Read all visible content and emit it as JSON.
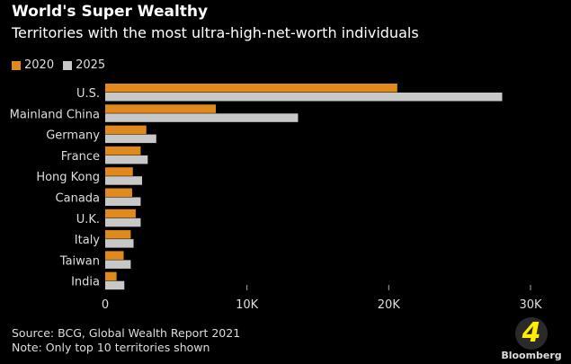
{
  "title": "World's Super Wealthy",
  "subtitle": "Territories with the most ultra-high-net-worth individuals",
  "source": "Source: BCG, Global Wealth Report 2021",
  "note": "Note: Only top 10 territories shown",
  "watermark": "Bloomberg",
  "chart_data": {
    "type": "bar",
    "orientation": "horizontal",
    "title": "World's Super Wealthy",
    "subtitle": "Territories with the most ultra-high-net-worth individuals",
    "categories": [
      "U.S.",
      "Mainland China",
      "Germany",
      "France",
      "Hong Kong",
      "Canada",
      "U.K.",
      "Italy",
      "Taiwan",
      "India"
    ],
    "series": [
      {
        "name": "2020",
        "color": "#e08a1e",
        "values": [
          20600,
          7800,
          2900,
          2500,
          1950,
          1900,
          2150,
          1800,
          1300,
          800
        ]
      },
      {
        "name": "2025",
        "color": "#c8c8c8",
        "values": [
          28000,
          13600,
          3600,
          3000,
          2600,
          2500,
          2500,
          2000,
          1800,
          1350
        ]
      }
    ],
    "xlim": [
      0,
      30000
    ],
    "xticks": [
      0,
      10000,
      20000,
      30000
    ],
    "xtick_labels": [
      "0",
      "10K",
      "20K",
      "30K"
    ],
    "grid": false,
    "legend_position": "top-left"
  }
}
